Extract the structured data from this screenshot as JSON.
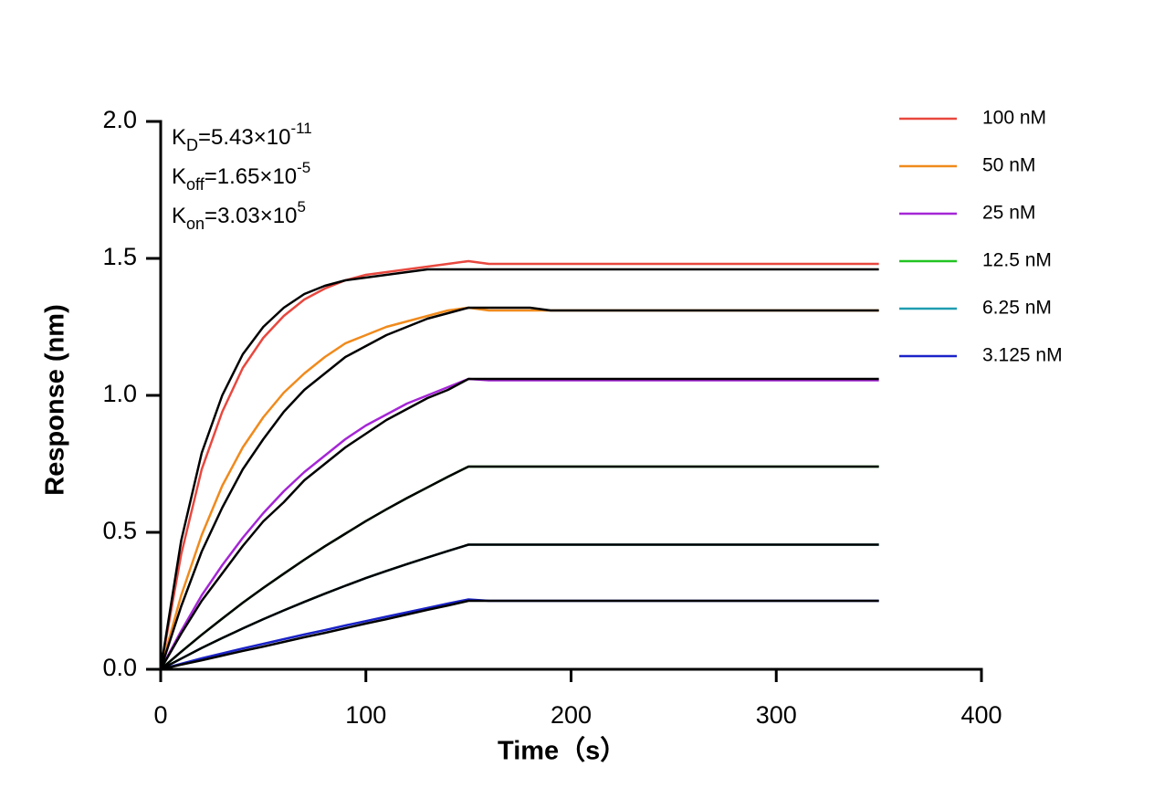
{
  "chart_data": {
    "type": "line",
    "xlabel": "Time（s）",
    "ylabel": "Response (nm)",
    "annotations": [
      {
        "symbol": "K",
        "subscript": "D",
        "text": "=5.43×10",
        "exponent": "-11"
      },
      {
        "symbol": "K",
        "subscript": "off",
        "text": "=1.65×10",
        "exponent": "-5"
      },
      {
        "symbol": "K",
        "subscript": "on",
        "text": "=3.03×10",
        "exponent": "5"
      }
    ],
    "xlim": [
      0,
      400
    ],
    "xticks": [
      0,
      100,
      200,
      300,
      400
    ],
    "ylim": [
      0,
      2.0
    ],
    "yticks": [
      {
        "value": 0,
        "label": "0.0"
      },
      {
        "value": 0.5,
        "label": "0.5"
      },
      {
        "value": 1.0,
        "label": "1.0"
      },
      {
        "value": 1.5,
        "label": "1.5"
      },
      {
        "value": 2.0,
        "label": "2.0"
      }
    ],
    "x": [
      0,
      10,
      20,
      30,
      40,
      50,
      60,
      70,
      80,
      90,
      100,
      110,
      120,
      130,
      140,
      150,
      160,
      170,
      180,
      190,
      200,
      210,
      220,
      230,
      240,
      250,
      260,
      270,
      280,
      290,
      300,
      310,
      320,
      330,
      340,
      350
    ],
    "series": [
      {
        "name": "100 nM",
        "color": "#e8483f",
        "values": [
          0,
          0.42,
          0.73,
          0.94,
          1.1,
          1.21,
          1.29,
          1.35,
          1.39,
          1.42,
          1.44,
          1.45,
          1.46,
          1.47,
          1.48,
          1.49,
          1.48,
          1.48,
          1.48,
          1.48,
          1.48,
          1.48,
          1.48,
          1.48,
          1.48,
          1.48,
          1.48,
          1.48,
          1.48,
          1.48,
          1.48,
          1.48,
          1.48,
          1.48,
          1.48,
          1.48
        ]
      },
      {
        "name": "50 nM",
        "color": "#f08a1c",
        "values": [
          0,
          0.27,
          0.49,
          0.67,
          0.81,
          0.92,
          1.01,
          1.08,
          1.14,
          1.19,
          1.22,
          1.25,
          1.27,
          1.29,
          1.31,
          1.32,
          1.31,
          1.31,
          1.31,
          1.31,
          1.31,
          1.31,
          1.31,
          1.31,
          1.31,
          1.31,
          1.31,
          1.31,
          1.31,
          1.31,
          1.31,
          1.31,
          1.31,
          1.31,
          1.31,
          1.31
        ]
      },
      {
        "name": "25 nM",
        "color": "#a526d6",
        "values": [
          0,
          0.14,
          0.27,
          0.38,
          0.48,
          0.57,
          0.65,
          0.72,
          0.78,
          0.84,
          0.89,
          0.93,
          0.97,
          1.0,
          1.03,
          1.06,
          1.055,
          1.055,
          1.055,
          1.055,
          1.055,
          1.055,
          1.055,
          1.055,
          1.055,
          1.055,
          1.055,
          1.055,
          1.055,
          1.055,
          1.055,
          1.055,
          1.055,
          1.055,
          1.055,
          1.055
        ]
      },
      {
        "name": "12.5 nM",
        "color": "#22c422",
        "values": [
          0,
          0.064,
          0.126,
          0.185,
          0.243,
          0.297,
          0.349,
          0.4,
          0.449,
          0.495,
          0.541,
          0.584,
          0.625,
          0.664,
          0.703,
          0.74,
          0.74,
          0.74,
          0.74,
          0.74,
          0.74,
          0.74,
          0.74,
          0.74,
          0.74,
          0.74,
          0.74,
          0.74,
          0.74,
          0.74,
          0.74,
          0.74,
          0.74,
          0.74,
          0.74,
          0.74
        ]
      },
      {
        "name": "6.25 nM",
        "color": "#1f9db0",
        "values": [
          0,
          0.039,
          0.078,
          0.114,
          0.149,
          0.183,
          0.215,
          0.246,
          0.276,
          0.305,
          0.333,
          0.359,
          0.384,
          0.408,
          0.432,
          0.455,
          0.455,
          0.455,
          0.455,
          0.455,
          0.455,
          0.455,
          0.455,
          0.455,
          0.455,
          0.455,
          0.455,
          0.455,
          0.455,
          0.455,
          0.455,
          0.455,
          0.455,
          0.455,
          0.455,
          0.455
        ]
      },
      {
        "name": "3.125 nM",
        "color": "#1a22c8",
        "values": [
          0,
          0.02,
          0.04,
          0.058,
          0.076,
          0.093,
          0.11,
          0.127,
          0.143,
          0.16,
          0.176,
          0.192,
          0.208,
          0.224,
          0.24,
          0.255,
          0.25,
          0.25,
          0.25,
          0.25,
          0.25,
          0.25,
          0.25,
          0.25,
          0.25,
          0.25,
          0.25,
          0.25,
          0.25,
          0.25,
          0.25,
          0.25,
          0.25,
          0.25,
          0.25,
          0.25
        ]
      },
      {
        "color": "#000000",
        "values": [
          0,
          0.47,
          0.79,
          1.0,
          1.15,
          1.25,
          1.32,
          1.37,
          1.4,
          1.42,
          1.43,
          1.44,
          1.45,
          1.46,
          1.46,
          1.46,
          1.46,
          1.46,
          1.46,
          1.46,
          1.46,
          1.46,
          1.46,
          1.46,
          1.46,
          1.46,
          1.46,
          1.46,
          1.46,
          1.46,
          1.46,
          1.46,
          1.46,
          1.46,
          1.46,
          1.46
        ]
      },
      {
        "color": "#000000",
        "values": [
          0,
          0.23,
          0.43,
          0.59,
          0.73,
          0.84,
          0.94,
          1.02,
          1.08,
          1.14,
          1.18,
          1.22,
          1.25,
          1.28,
          1.3,
          1.32,
          1.32,
          1.32,
          1.32,
          1.31,
          1.31,
          1.31,
          1.31,
          1.31,
          1.31,
          1.31,
          1.31,
          1.31,
          1.31,
          1.31,
          1.31,
          1.31,
          1.31,
          1.31,
          1.31,
          1.31
        ]
      },
      {
        "color": "#000000",
        "values": [
          0,
          0.13,
          0.25,
          0.35,
          0.45,
          0.54,
          0.61,
          0.69,
          0.75,
          0.81,
          0.86,
          0.91,
          0.95,
          0.99,
          1.02,
          1.06,
          1.06,
          1.06,
          1.06,
          1.06,
          1.06,
          1.06,
          1.06,
          1.06,
          1.06,
          1.06,
          1.06,
          1.06,
          1.06,
          1.06,
          1.06,
          1.06,
          1.06,
          1.06,
          1.06,
          1.06
        ]
      },
      {
        "color": "#000000",
        "values": [
          0,
          0.064,
          0.126,
          0.185,
          0.243,
          0.297,
          0.349,
          0.4,
          0.449,
          0.495,
          0.541,
          0.584,
          0.625,
          0.664,
          0.703,
          0.74,
          0.74,
          0.74,
          0.74,
          0.74,
          0.74,
          0.74,
          0.74,
          0.74,
          0.74,
          0.74,
          0.74,
          0.74,
          0.74,
          0.74,
          0.74,
          0.74,
          0.74,
          0.74,
          0.74,
          0.74
        ]
      },
      {
        "color": "#000000",
        "values": [
          0,
          0.039,
          0.078,
          0.114,
          0.149,
          0.183,
          0.215,
          0.246,
          0.276,
          0.305,
          0.333,
          0.359,
          0.384,
          0.408,
          0.432,
          0.455,
          0.455,
          0.455,
          0.455,
          0.455,
          0.455,
          0.455,
          0.455,
          0.455,
          0.455,
          0.455,
          0.455,
          0.455,
          0.455,
          0.455,
          0.455,
          0.455,
          0.455,
          0.455,
          0.455,
          0.455
        ]
      },
      {
        "color": "#000000",
        "values": [
          0,
          0.017,
          0.033,
          0.05,
          0.067,
          0.083,
          0.1,
          0.117,
          0.133,
          0.15,
          0.167,
          0.183,
          0.2,
          0.217,
          0.233,
          0.25,
          0.25,
          0.25,
          0.25,
          0.25,
          0.25,
          0.25,
          0.25,
          0.25,
          0.25,
          0.25,
          0.25,
          0.25,
          0.25,
          0.25,
          0.25,
          0.25,
          0.25,
          0.25,
          0.25,
          0.25
        ]
      }
    ]
  }
}
